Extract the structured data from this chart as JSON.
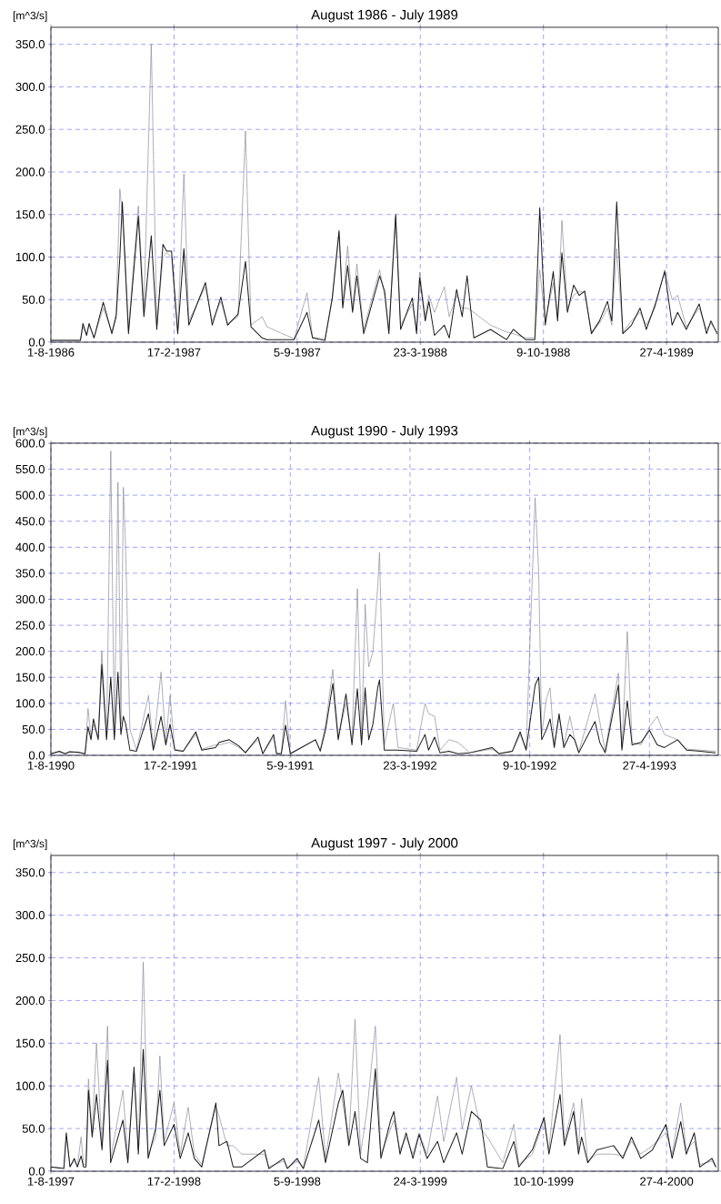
{
  "chart_data": [
    {
      "type": "line",
      "title": "August 1986 - July 1989",
      "ylabel": "[m^3/s]",
      "grid": true,
      "xlim": [
        "1986-08-01",
        "1989-07-20"
      ],
      "ylim": [
        0,
        370
      ],
      "xticks": [
        {
          "value": "1986-08-01",
          "label": "1-8-1986"
        },
        {
          "value": "1987-02-17",
          "label": "17-2-1987"
        },
        {
          "value": "1987-09-05",
          "label": "5-9-1987"
        },
        {
          "value": "1988-03-23",
          "label": "23-3-1988"
        },
        {
          "value": "1988-10-09",
          "label": "9-10-1988"
        },
        {
          "value": "1989-04-27",
          "label": "27-4-1989"
        }
      ],
      "yticks": [
        {
          "value": 0,
          "label": "0.0"
        },
        {
          "value": 50,
          "label": "50.0"
        },
        {
          "value": 100,
          "label": "100.0"
        },
        {
          "value": 150,
          "label": "150.0"
        },
        {
          "value": 200,
          "label": "200.0"
        },
        {
          "value": 250,
          "label": "250.0"
        },
        {
          "value": 300,
          "label": "300.0"
        },
        {
          "value": 350,
          "label": "350.0"
        }
      ],
      "x": [
        "1986-08-01",
        "1986-09-18",
        "1986-09-22",
        "1986-09-28",
        "1986-10-02",
        "1986-10-10",
        "1986-10-25",
        "1986-11-08",
        "1986-11-15",
        "1986-11-21",
        "1986-11-25",
        "1986-12-05",
        "1986-12-21",
        "1986-12-30",
        "1987-01-11",
        "1987-01-20",
        "1987-01-30",
        "1987-02-05",
        "1987-02-13",
        "1987-02-23",
        "1987-03-05",
        "1987-03-13",
        "1987-04-09",
        "1987-04-20",
        "1987-05-04",
        "1987-05-15",
        "1987-06-01",
        "1987-06-13",
        "1987-06-22",
        "1987-07-10",
        "1987-07-18",
        "1987-08-31",
        "1987-09-21",
        "1987-09-30",
        "1987-10-20",
        "1987-11-01",
        "1987-11-12",
        "1987-11-18",
        "1987-11-26",
        "1987-12-04",
        "1987-12-11",
        "1987-12-22",
        "1988-01-17",
        "1988-01-25",
        "1988-02-01",
        "1988-02-12",
        "1988-02-20",
        "1988-03-10",
        "1988-03-17",
        "1988-03-22",
        "1988-03-31",
        "1988-04-06",
        "1988-04-15",
        "1988-05-01",
        "1988-05-09",
        "1988-05-21",
        "1988-05-30",
        "1988-06-07",
        "1988-06-18",
        "1988-07-15",
        "1988-08-10",
        "1988-08-21",
        "1988-09-10",
        "1988-09-25",
        "1988-10-03",
        "1988-10-12",
        "1988-10-25",
        "1988-11-01",
        "1988-11-08",
        "1988-11-17",
        "1988-11-27",
        "1988-12-06",
        "1988-12-15",
        "1988-12-26",
        "1989-01-08",
        "1989-01-21",
        "1989-01-28",
        "1989-02-05",
        "1989-02-15",
        "1989-03-01",
        "1989-03-15",
        "1989-03-25",
        "1989-04-08",
        "1989-04-24",
        "1989-05-06",
        "1989-05-15",
        "1989-05-29",
        "1989-06-19",
        "1989-07-01",
        "1989-07-08",
        "1989-07-18"
      ],
      "series": [
        {
          "color": "#1a1a1a",
          "line_style": "solid",
          "values": [
            2,
            2,
            22,
            8,
            22,
            5,
            47,
            10,
            30,
            100,
            165,
            10,
            148,
            30,
            125,
            15,
            115,
            107,
            107,
            10,
            110,
            20,
            70,
            20,
            53,
            20,
            33,
            95,
            18,
            5,
            3,
            3,
            35,
            5,
            2,
            52,
            130,
            40,
            90,
            35,
            78,
            10,
            78,
            60,
            10,
            150,
            15,
            52,
            10,
            76,
            25,
            48,
            8,
            20,
            5,
            62,
            30,
            78,
            5,
            15,
            3,
            15,
            3,
            3,
            158,
            20,
            83,
            25,
            105,
            35,
            67,
            55,
            60,
            10,
            25,
            48,
            25,
            165,
            10,
            20,
            40,
            15,
            43,
            83,
            20,
            35,
            15,
            45,
            10,
            25,
            10
          ]
        },
        {
          "color": "#8a8a9a",
          "line_style": "dotted",
          "values": [
            2,
            2,
            18,
            8,
            20,
            5,
            40,
            12,
            35,
            180,
            150,
            15,
            160,
            40,
            350,
            20,
            100,
            105,
            100,
            12,
            198,
            25,
            65,
            25,
            48,
            22,
            30,
            248,
            20,
            30,
            18,
            4,
            58,
            6,
            3,
            50,
            132,
            45,
            113,
            40,
            92,
            15,
            85,
            55,
            15,
            148,
            20,
            45,
            15,
            82,
            30,
            55,
            35,
            65,
            30,
            55,
            40,
            40,
            35,
            20,
            12,
            10,
            5,
            5,
            85,
            25,
            70,
            30,
            143,
            40,
            55,
            60,
            58,
            12,
            22,
            40,
            20,
            110,
            12,
            25,
            35,
            20,
            40,
            85,
            50,
            55,
            18,
            40,
            15,
            22,
            12
          ]
        }
      ]
    },
    {
      "type": "line",
      "title": "August 1990 - July 1993",
      "ylabel": "[m^3/s]",
      "grid": true,
      "xlim": [
        "1990-08-01",
        "1993-08-20"
      ],
      "ylim": [
        0,
        600
      ],
      "xticks": [
        {
          "value": "1990-08-01",
          "label": "1-8-1990"
        },
        {
          "value": "1991-02-17",
          "label": "17-2-1991"
        },
        {
          "value": "1991-09-05",
          "label": "5-9-1991"
        },
        {
          "value": "1992-03-23",
          "label": "23-3-1992"
        },
        {
          "value": "1992-10-09",
          "label": "9-10-1992"
        },
        {
          "value": "1993-04-27",
          "label": "27-4-1993"
        }
      ],
      "yticks": [
        {
          "value": 0,
          "label": "0.0"
        },
        {
          "value": 50,
          "label": "50.0"
        },
        {
          "value": 100,
          "label": "100.0"
        },
        {
          "value": 150,
          "label": "150.0"
        },
        {
          "value": 200,
          "label": "200.0"
        },
        {
          "value": 250,
          "label": "250.0"
        },
        {
          "value": 300,
          "label": "300.0"
        },
        {
          "value": 350,
          "label": "350.0"
        },
        {
          "value": 400,
          "label": "400.0"
        },
        {
          "value": 450,
          "label": "450.0"
        },
        {
          "value": 500,
          "label": "500.0"
        },
        {
          "value": 550,
          "label": "550.0"
        },
        {
          "value": 600,
          "label": "600.0"
        }
      ],
      "x": [
        "1990-08-01",
        "1990-08-15",
        "1990-08-25",
        "1990-09-01",
        "1990-09-15",
        "1990-09-27",
        "1990-10-02",
        "1990-10-07",
        "1990-10-11",
        "1990-10-19",
        "1990-10-25",
        "1990-11-02",
        "1990-11-09",
        "1990-11-15",
        "1990-11-21",
        "1990-11-26",
        "1990-11-30",
        "1990-12-04",
        "1990-12-11",
        "1990-12-22",
        "1991-01-11",
        "1991-01-19",
        "1991-02-01",
        "1991-02-09",
        "1991-02-16",
        "1991-02-24",
        "1991-03-10",
        "1991-03-31",
        "1991-04-10",
        "1991-05-03",
        "1991-05-09",
        "1991-05-26",
        "1991-06-11",
        "1991-06-22",
        "1991-07-13",
        "1991-07-21",
        "1991-08-08",
        "1991-08-13",
        "1991-08-21",
        "1991-08-28",
        "1991-09-05",
        "1991-10-17",
        "1991-10-25",
        "1991-11-03",
        "1991-11-15",
        "1991-11-24",
        "1991-12-07",
        "1991-12-17",
        "1991-12-26",
        "1992-01-02",
        "1992-01-08",
        "1992-01-14",
        "1992-01-21",
        "1992-01-29",
        "1992-02-01",
        "1992-02-09",
        "1992-02-24",
        "1992-03-03",
        "1992-04-03",
        "1992-04-17",
        "1992-04-23",
        "1992-05-03",
        "1992-05-12",
        "1992-05-27",
        "1992-06-11",
        "1992-07-01",
        "1992-08-07",
        "1992-08-19",
        "1992-09-10",
        "1992-09-23",
        "1992-10-03",
        "1992-10-18",
        "1992-10-24",
        "1992-10-29",
        "1992-11-06",
        "1992-11-12",
        "1992-11-19",
        "1992-11-27",
        "1992-12-05",
        "1992-12-15",
        "1992-12-23",
        "1992-12-30",
        "1993-01-26",
        "1993-02-03",
        "1993-02-12",
        "1993-03-06",
        "1993-03-12",
        "1993-03-21",
        "1993-03-29",
        "1993-04-13",
        "1993-04-27",
        "1993-05-10",
        "1993-05-22",
        "1993-06-13",
        "1993-06-28",
        "1993-07-21",
        "1993-08-15"
      ],
      "series": [
        {
          "color": "#1a1a1a",
          "line_style": "solid",
          "values": [
            3,
            8,
            3,
            7,
            6,
            3,
            55,
            30,
            70,
            30,
            175,
            30,
            150,
            30,
            160,
            40,
            75,
            60,
            10,
            8,
            80,
            10,
            75,
            20,
            60,
            10,
            8,
            45,
            10,
            15,
            25,
            30,
            18,
            5,
            35,
            3,
            40,
            3,
            3,
            58,
            3,
            30,
            8,
            50,
            138,
            30,
            118,
            20,
            128,
            20,
            130,
            30,
            60,
            130,
            145,
            10,
            10,
            10,
            8,
            40,
            10,
            35,
            5,
            8,
            3,
            5,
            15,
            3,
            8,
            45,
            10,
            135,
            150,
            30,
            50,
            70,
            15,
            80,
            15,
            40,
            30,
            5,
            65,
            25,
            5,
            135,
            10,
            105,
            20,
            25,
            48,
            20,
            15,
            30,
            10,
            8,
            5
          ]
        },
        {
          "color": "#8a8a9a",
          "line_style": "dotted",
          "values": [
            3,
            6,
            3,
            6,
            5,
            3,
            90,
            35,
            60,
            35,
            200,
            35,
            585,
            40,
            525,
            60,
            515,
            390,
            50,
            10,
            115,
            15,
            160,
            25,
            115,
            12,
            8,
            40,
            12,
            20,
            20,
            25,
            15,
            6,
            30,
            4,
            35,
            4,
            4,
            105,
            4,
            30,
            10,
            60,
            165,
            35,
            100,
            30,
            320,
            30,
            290,
            170,
            200,
            325,
            390,
            20,
            100,
            15,
            10,
            100,
            80,
            75,
            10,
            30,
            25,
            5,
            12,
            4,
            8,
            40,
            12,
            495,
            350,
            40,
            110,
            130,
            20,
            75,
            20,
            75,
            30,
            6,
            118,
            65,
            8,
            158,
            15,
            238,
            25,
            20,
            55,
            75,
            40,
            30,
            12,
            10,
            8
          ]
        }
      ]
    },
    {
      "type": "line",
      "title": "August 1997 - July 2000",
      "ylabel": "[m^3/s]",
      "grid": true,
      "xlim": [
        "1997-08-01",
        "2000-07-20"
      ],
      "ylim": [
        0,
        370
      ],
      "xticks": [
        {
          "value": "1997-08-01",
          "label": "1-8-1997"
        },
        {
          "value": "1998-02-17",
          "label": "17-2-1998"
        },
        {
          "value": "1998-09-05",
          "label": "5-9-1998"
        },
        {
          "value": "1999-03-24",
          "label": "24-3-1999"
        },
        {
          "value": "1999-10-10",
          "label": "10-10-1999"
        },
        {
          "value": "2000-04-27",
          "label": "27-4-2000"
        }
      ],
      "yticks": [
        {
          "value": 0,
          "label": "0.0"
        },
        {
          "value": 50,
          "label": "50.0"
        },
        {
          "value": 100,
          "label": "100.0"
        },
        {
          "value": 150,
          "label": "150.0"
        },
        {
          "value": 200,
          "label": "200.0"
        },
        {
          "value": 250,
          "label": "250.0"
        },
        {
          "value": 300,
          "label": "300.0"
        },
        {
          "value": 350,
          "label": "350.0"
        }
      ],
      "x": [
        "1997-08-01",
        "1997-08-22",
        "1997-08-26",
        "1997-09-01",
        "1997-09-08",
        "1997-09-13",
        "1997-09-19",
        "1997-09-23",
        "1997-09-27",
        "1997-10-01",
        "1997-10-07",
        "1997-10-14",
        "1997-10-23",
        "1997-11-01",
        "1997-11-06",
        "1997-11-26",
        "1997-12-04",
        "1997-12-14",
        "1997-12-21",
        "1997-12-29",
        "1998-01-06",
        "1998-01-18",
        "1998-01-25",
        "1998-02-01",
        "1998-02-17",
        "1998-02-27",
        "1998-03-12",
        "1998-03-22",
        "1998-04-03",
        "1998-04-26",
        "1998-05-01",
        "1998-05-14",
        "1998-05-24",
        "1998-06-07",
        "1998-07-14",
        "1998-07-21",
        "1998-08-14",
        "1998-08-20",
        "1998-09-05",
        "1998-09-15",
        "1998-10-10",
        "1998-10-21",
        "1998-11-11",
        "1998-11-18",
        "1998-11-28",
        "1998-12-08",
        "1998-12-17",
        "1998-12-28",
        "1999-01-10",
        "1999-01-19",
        "1999-02-04",
        "1999-02-09",
        "1999-02-19",
        "1999-03-01",
        "1999-03-12",
        "1999-03-22",
        "1999-04-04",
        "1999-04-21",
        "1999-05-01",
        "1999-05-22",
        "1999-05-31",
        "1999-06-15",
        "1999-06-30",
        "1999-07-11",
        "1999-08-05",
        "1999-08-23",
        "1999-08-31",
        "1999-09-22",
        "1999-10-11",
        "1999-10-19",
        "1999-11-06",
        "1999-11-13",
        "1999-11-28",
        "1999-12-06",
        "1999-12-11",
        "1999-12-21",
        "2000-01-05",
        "2000-02-01",
        "2000-02-16",
        "2000-03-01",
        "2000-03-16",
        "2000-04-04",
        "2000-04-26",
        "2000-05-06",
        "2000-05-20",
        "2000-05-29",
        "2000-06-11",
        "2000-06-20",
        "2000-07-10",
        "2000-07-16"
      ],
      "series": [
        {
          "color": "#1a1a1a",
          "line_style": "solid",
          "values": [
            5,
            3,
            45,
            5,
            15,
            5,
            18,
            5,
            5,
            95,
            40,
            90,
            25,
            130,
            10,
            60,
            10,
            122,
            20,
            143,
            15,
            50,
            95,
            30,
            55,
            15,
            45,
            15,
            5,
            80,
            30,
            35,
            5,
            5,
            25,
            3,
            15,
            3,
            15,
            3,
            60,
            10,
            80,
            95,
            30,
            70,
            15,
            10,
            120,
            15,
            60,
            70,
            20,
            45,
            15,
            43,
            15,
            35,
            10,
            45,
            20,
            70,
            60,
            5,
            3,
            35,
            5,
            25,
            63,
            20,
            90,
            30,
            70,
            20,
            40,
            10,
            25,
            30,
            15,
            40,
            15,
            25,
            55,
            15,
            58,
            20,
            45,
            5,
            15,
            5
          ]
        },
        {
          "color": "#8a8a9a",
          "line_style": "dotted",
          "values": [
            5,
            4,
            40,
            6,
            12,
            6,
            40,
            8,
            8,
            108,
            45,
            150,
            30,
            170,
            15,
            95,
            15,
            115,
            25,
            245,
            20,
            40,
            135,
            35,
            80,
            20,
            75,
            20,
            8,
            75,
            65,
            30,
            30,
            20,
            20,
            5,
            12,
            4,
            12,
            4,
            110,
            15,
            115,
            80,
            35,
            178,
            20,
            75,
            170,
            20,
            50,
            60,
            25,
            40,
            20,
            45,
            20,
            88,
            35,
            110,
            50,
            100,
            50,
            40,
            10,
            55,
            8,
            20,
            60,
            25,
            160,
            35,
            80,
            25,
            85,
            12,
            20,
            20,
            18,
            35,
            20,
            30,
            45,
            20,
            80,
            25,
            35,
            8,
            12,
            5
          ]
        }
      ]
    }
  ]
}
